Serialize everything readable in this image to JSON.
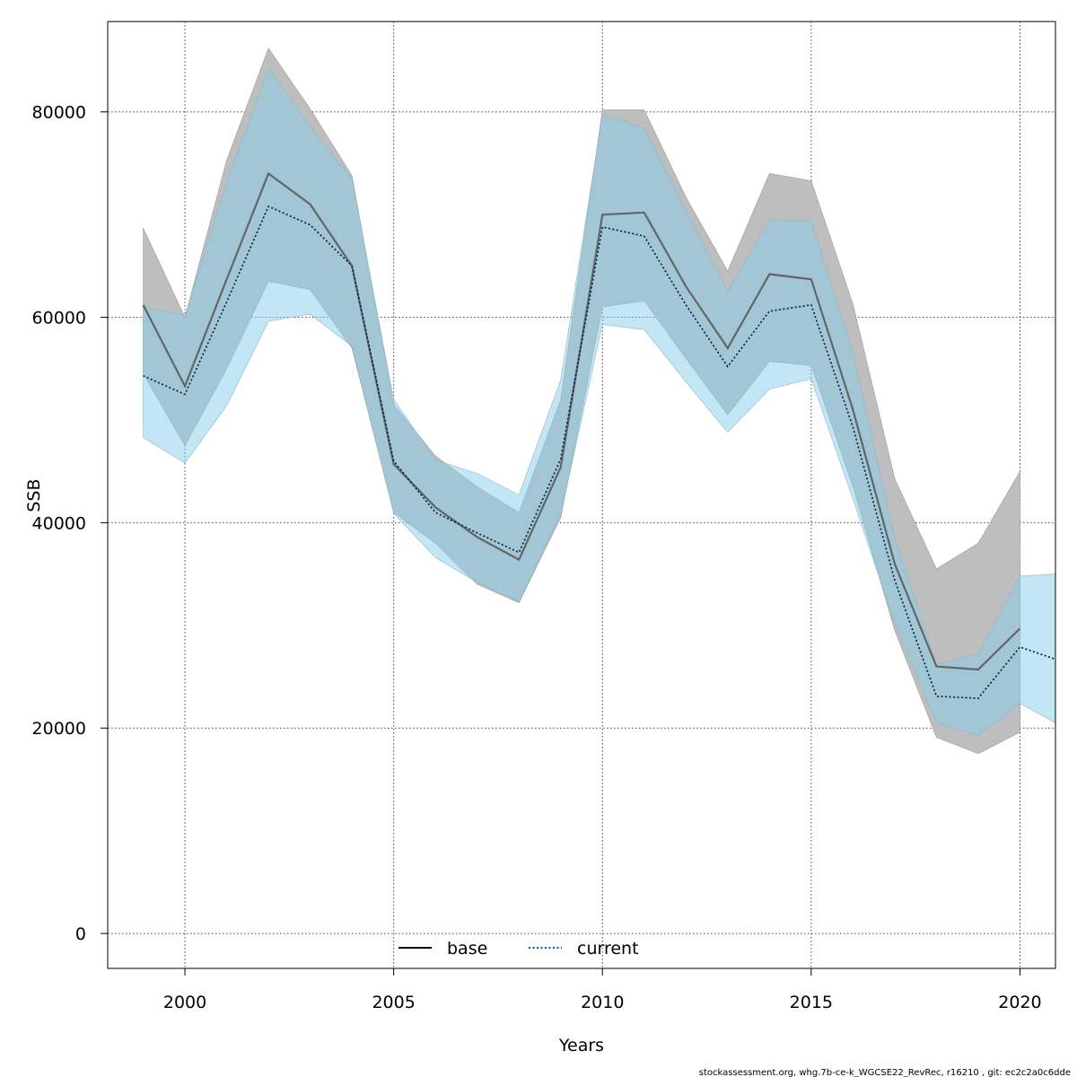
{
  "chart_data": {
    "type": "line",
    "title": "",
    "xlabel": "Years",
    "ylabel": "SSB",
    "xlim": [
      1998.15,
      2020.85
    ],
    "ylim": [
      -3400,
      88800
    ],
    "x_ticks": [
      2000,
      2005,
      2010,
      2015,
      2020
    ],
    "y_ticks": [
      0,
      20000,
      40000,
      60000,
      80000
    ],
    "grid": true,
    "legend_position": "bottom-center",
    "series": [
      {
        "name": "base",
        "line_style": "solid",
        "line_color": "#555555",
        "band_color": "#bebebe",
        "x": [
          1999,
          2000,
          2001,
          2002,
          2003,
          2004,
          2005,
          2006,
          2007,
          2008,
          2009,
          2010,
          2011,
          2012,
          2013,
          2014,
          2015,
          2016,
          2017,
          2018,
          2019,
          2020
        ],
        "values": [
          61200,
          53300,
          63700,
          74000,
          71000,
          65000,
          45700,
          41500,
          38600,
          36400,
          45400,
          70000,
          70200,
          63000,
          57000,
          64200,
          63700,
          51000,
          36000,
          26000,
          25700,
          29700
        ],
        "lower": [
          54500,
          47500,
          55000,
          63500,
          62700,
          57000,
          41000,
          38000,
          34000,
          32200,
          40500,
          61000,
          61600,
          56000,
          50500,
          55700,
          55300,
          43500,
          29500,
          19100,
          17500,
          19600
        ],
        "upper": [
          68700,
          60000,
          75300,
          86200,
          80300,
          73800,
          51500,
          46500,
          43500,
          41000,
          52000,
          80200,
          80200,
          71700,
          64500,
          74000,
          73300,
          61300,
          44300,
          35500,
          38000,
          45000
        ]
      },
      {
        "name": "current",
        "line_style": "dotted",
        "line_color": "#0a4fa0",
        "band_color": "#87ceeb",
        "x": [
          1999,
          2000,
          2001,
          2002,
          2003,
          2004,
          2005,
          2006,
          2007,
          2008,
          2009,
          2010,
          2011,
          2012,
          2013,
          2014,
          2015,
          2016,
          2017,
          2018,
          2019,
          2020,
          2021
        ],
        "values": [
          54300,
          52500,
          61500,
          70800,
          69000,
          65000,
          46000,
          41000,
          39000,
          37100,
          46200,
          68800,
          67900,
          61200,
          55200,
          60600,
          61200,
          49300,
          34400,
          23100,
          22900,
          27900,
          26700
        ],
        "lower": [
          48300,
          45800,
          51400,
          59600,
          60300,
          57200,
          40900,
          36600,
          34200,
          32300,
          40800,
          59300,
          58800,
          53700,
          48800,
          53000,
          54000,
          42300,
          30200,
          20500,
          19300,
          22400,
          20500
        ],
        "upper": [
          61000,
          60200,
          73200,
          84300,
          78600,
          73500,
          52000,
          46100,
          44800,
          42700,
          53900,
          79800,
          78500,
          70400,
          62500,
          69500,
          69400,
          56500,
          38500,
          26200,
          27200,
          34800,
          35000
        ]
      }
    ]
  },
  "footer": "stockassessment.org, whg.7b-ce-k_WGCSE22_RevRec, r16210 , git: ec2c2a0c6dde"
}
